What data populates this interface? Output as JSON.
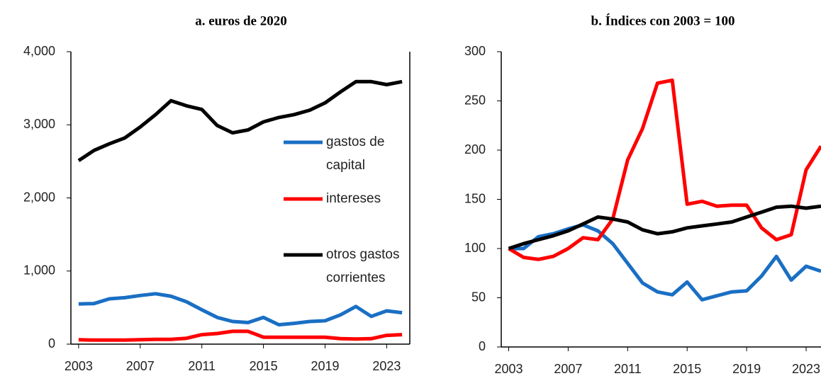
{
  "chart_data": [
    {
      "type": "line",
      "title": "a. euros de 2020",
      "x": [
        2003,
        2004,
        2005,
        2006,
        2007,
        2008,
        2009,
        2010,
        2011,
        2012,
        2013,
        2014,
        2015,
        2016,
        2017,
        2018,
        2019,
        2020,
        2021,
        2022,
        2023,
        2024
      ],
      "xlim": [
        2002.5,
        2024.5
      ],
      "xticks": [
        2003,
        2007,
        2011,
        2015,
        2019,
        2023
      ],
      "ylim": [
        0,
        4000
      ],
      "yticks": [
        0,
        {
          "value": 1000,
          "label": "1,000"
        },
        {
          "value": 2000,
          "label": "2,000"
        },
        {
          "value": 3000,
          "label": "3,000"
        },
        {
          "value": 4000,
          "label": "4,000"
        }
      ],
      "legend": "right",
      "series": [
        {
          "name": "gastos de capital",
          "color": "#1a6fc4",
          "values": [
            550,
            555,
            620,
            635,
            665,
            690,
            655,
            580,
            470,
            365,
            310,
            295,
            365,
            265,
            285,
            310,
            320,
            400,
            515,
            380,
            455,
            430
          ]
        },
        {
          "name": "intereses",
          "color": "#ff0000",
          "values": [
            60,
            55,
            55,
            55,
            60,
            65,
            65,
            80,
            130,
            145,
            175,
            175,
            95,
            95,
            95,
            95,
            95,
            75,
            70,
            75,
            120,
            130
          ]
        },
        {
          "name": "otros gastos corrientes",
          "color": "#000000",
          "values": [
            2510,
            2650,
            2740,
            2820,
            2970,
            3140,
            3330,
            3260,
            3210,
            2990,
            2890,
            2930,
            3040,
            3100,
            3140,
            3200,
            3300,
            3450,
            3590,
            3590,
            3550,
            3590
          ]
        }
      ]
    },
    {
      "type": "line",
      "title": "b. Índices con 2003 = 100",
      "x": [
        2003,
        2004,
        2005,
        2006,
        2007,
        2008,
        2009,
        2010,
        2011,
        2012,
        2013,
        2014,
        2015,
        2016,
        2017,
        2018,
        2019,
        2020,
        2021,
        2022,
        2023,
        2024
      ],
      "xlim": [
        2002.5,
        2024
      ],
      "xticks": [
        2003,
        2007,
        2011,
        2015,
        2019,
        2023
      ],
      "ylim": [
        0,
        300
      ],
      "yticks": [
        0,
        50,
        100,
        150,
        200,
        250,
        300
      ],
      "series": [
        {
          "color": "#1a6fc4",
          "values": [
            100,
            100,
            112,
            115,
            120,
            124,
            118,
            105,
            85,
            65,
            56,
            53,
            66,
            48,
            52,
            56,
            57,
            72,
            92,
            68,
            82,
            77
          ]
        },
        {
          "color": "#ff0000",
          "values": [
            100,
            91,
            89,
            92,
            100,
            111,
            109,
            130,
            190,
            222,
            268,
            271,
            145,
            148,
            143,
            144,
            144,
            121,
            109,
            114,
            180,
            204
          ]
        },
        {
          "color": "#000000",
          "values": [
            100,
            105,
            109,
            113,
            118,
            125,
            132,
            130,
            127,
            119,
            115,
            117,
            121,
            123,
            125,
            127,
            132,
            137,
            142,
            143,
            141,
            143
          ]
        }
      ]
    }
  ]
}
